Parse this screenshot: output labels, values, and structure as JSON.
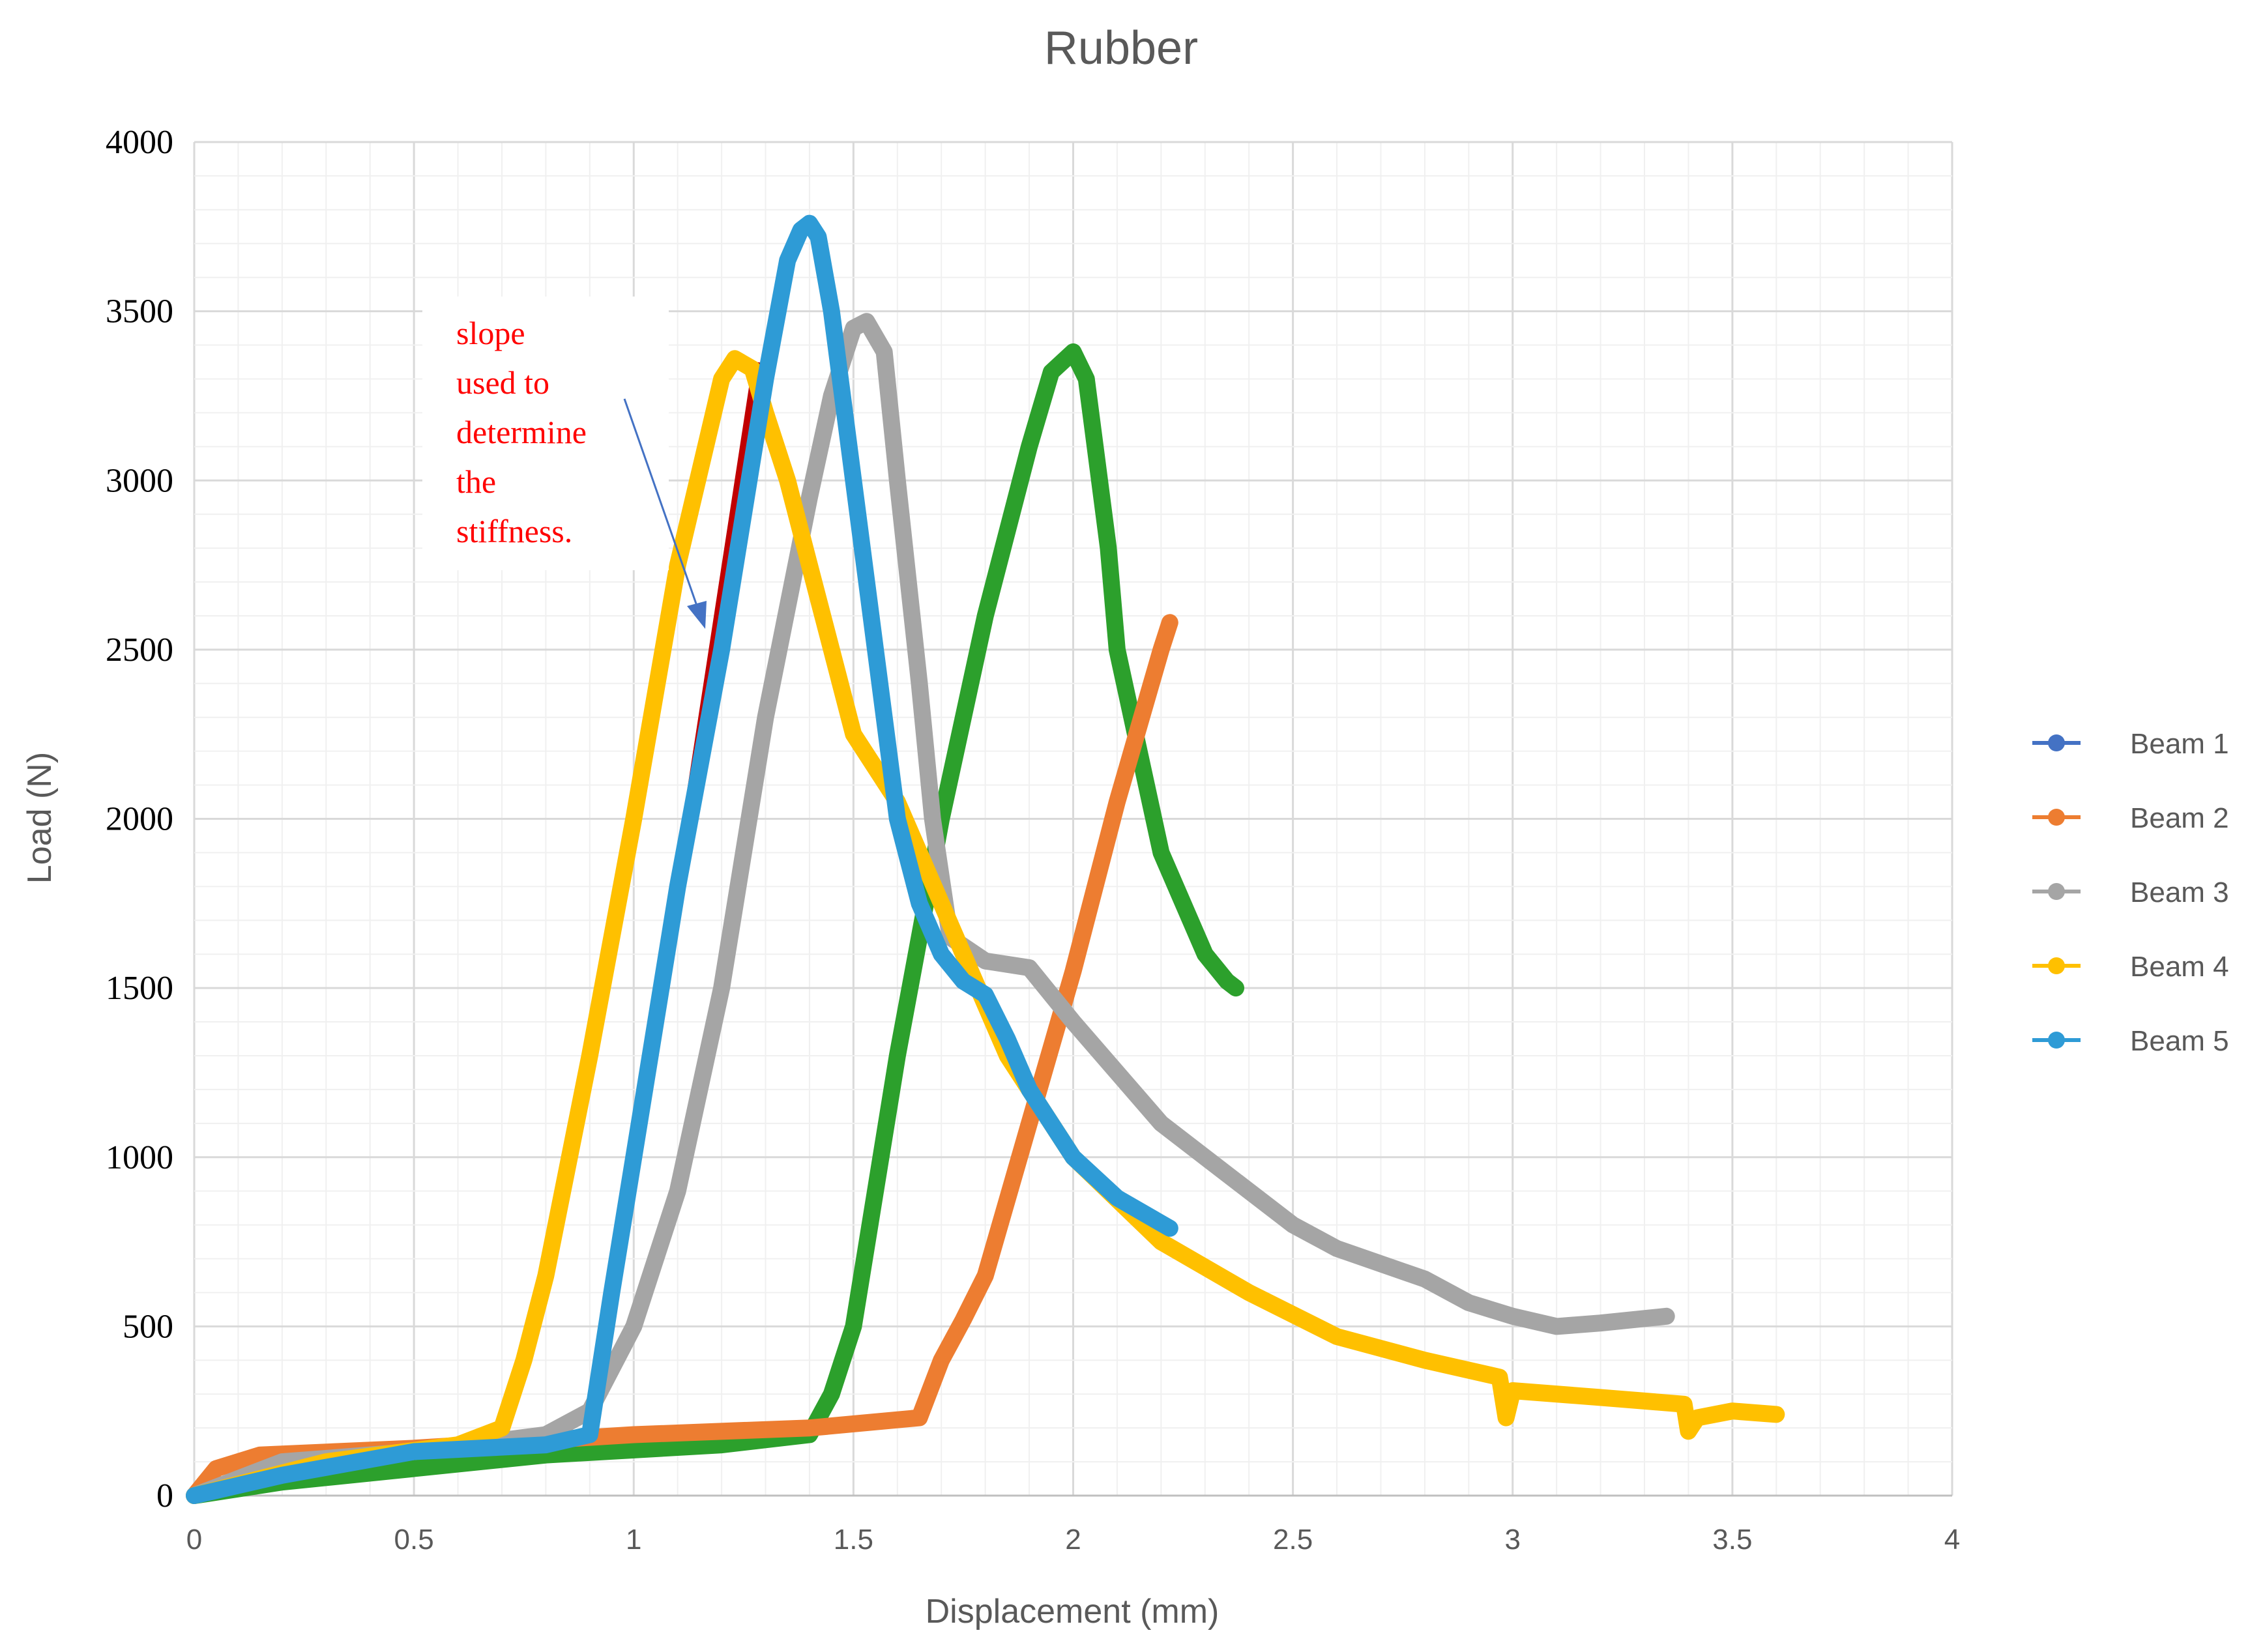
{
  "chart_data": {
    "type": "line",
    "title": "Rubber",
    "xlabel": "Displacement (mm)",
    "ylabel": "Load (N)",
    "xlim": [
      0,
      4
    ],
    "ylim": [
      0,
      4000
    ],
    "x_ticks": [
      "0",
      "0.5",
      "1",
      "1.5",
      "2",
      "2.5",
      "3",
      "3.5",
      "4"
    ],
    "y_ticks": [
      "0",
      "500",
      "1000",
      "1500",
      "2000",
      "2500",
      "3000",
      "3500",
      "4000"
    ],
    "grid": true,
    "legend_position": "right",
    "annotation": {
      "lines": [
        "slope",
        "used to",
        "determine",
        "the",
        "stiffness."
      ],
      "color": "#ff0000",
      "arrow_color": "#4472c4",
      "slope_line": {
        "x": [
          1.0,
          1.28
        ],
        "y": [
          980,
          3350
        ],
        "color": "#c00000"
      }
    },
    "series": [
      {
        "name": "Beam 1",
        "color": "#2ca02c",
        "legend_color": "#4472c4",
        "x": [
          0,
          0.2,
          0.5,
          0.8,
          1.2,
          1.4,
          1.45,
          1.5,
          1.55,
          1.6,
          1.7,
          1.8,
          1.9,
          1.95,
          2.0,
          2.03,
          2.05,
          2.08,
          2.1,
          2.15,
          2.2,
          2.25,
          2.3,
          2.35,
          2.37
        ],
        "y": [
          0,
          40,
          80,
          120,
          150,
          180,
          300,
          500,
          900,
          1300,
          2000,
          2600,
          3100,
          3320,
          3380,
          3300,
          3100,
          2800,
          2500,
          2200,
          1900,
          1750,
          1600,
          1520,
          1500
        ]
      },
      {
        "name": "Beam 2",
        "color": "#ed7d31",
        "legend_color": "#ed7d31",
        "x": [
          0,
          0.05,
          0.15,
          0.5,
          1.0,
          1.4,
          1.65,
          1.7,
          1.75,
          1.8,
          1.9,
          2.0,
          2.1,
          2.2,
          2.22
        ],
        "y": [
          0,
          80,
          120,
          140,
          180,
          200,
          230,
          400,
          520,
          650,
          1100,
          1550,
          2050,
          2500,
          2580
        ]
      },
      {
        "name": "Beam 3",
        "color": "#a5a5a5",
        "legend_color": "#a5a5a5",
        "x": [
          0,
          0.2,
          0.5,
          0.8,
          0.9,
          1.0,
          1.1,
          1.2,
          1.3,
          1.4,
          1.45,
          1.5,
          1.53,
          1.57,
          1.6,
          1.65,
          1.68,
          1.72,
          1.8,
          1.9,
          2.0,
          2.1,
          2.2,
          2.3,
          2.4,
          2.5,
          2.6,
          2.8,
          2.9,
          3.0,
          3.1,
          3.2,
          3.35
        ],
        "y": [
          0,
          100,
          130,
          180,
          250,
          500,
          900,
          1500,
          2300,
          2950,
          3250,
          3450,
          3470,
          3380,
          3000,
          2400,
          2000,
          1650,
          1580,
          1560,
          1400,
          1250,
          1100,
          1000,
          900,
          800,
          730,
          640,
          570,
          530,
          500,
          510,
          530
        ]
      },
      {
        "name": "Beam 4",
        "color": "#ffc000",
        "legend_color": "#ffc000",
        "x": [
          0,
          0.3,
          0.6,
          0.7,
          0.75,
          0.8,
          0.9,
          1.0,
          1.1,
          1.2,
          1.23,
          1.27,
          1.3,
          1.35,
          1.4,
          1.45,
          1.5,
          1.6,
          1.7,
          1.75,
          1.85,
          2.0,
          2.2,
          2.4,
          2.6,
          2.8,
          2.97,
          2.985,
          3.0,
          3.2,
          3.39,
          3.4,
          3.42,
          3.5,
          3.6
        ],
        "y": [
          0,
          100,
          150,
          200,
          400,
          650,
          1300,
          2000,
          2750,
          3300,
          3360,
          3330,
          3200,
          3000,
          2750,
          2500,
          2250,
          2050,
          1750,
          1600,
          1300,
          1000,
          750,
          600,
          470,
          400,
          350,
          230,
          310,
          290,
          270,
          190,
          230,
          250,
          240
        ]
      },
      {
        "name": "Beam 5",
        "color": "#2e9bd6",
        "legend_color": "#2e9bd6",
        "x": [
          0,
          0.2,
          0.5,
          0.8,
          0.9,
          0.95,
          1.0,
          1.05,
          1.1,
          1.2,
          1.3,
          1.35,
          1.38,
          1.4,
          1.42,
          1.45,
          1.5,
          1.55,
          1.6,
          1.65,
          1.7,
          1.75,
          1.8,
          1.85,
          1.9,
          2.0,
          2.1,
          2.22
        ],
        "y": [
          0,
          60,
          130,
          150,
          180,
          600,
          1000,
          1400,
          1800,
          2500,
          3300,
          3650,
          3740,
          3760,
          3720,
          3500,
          3000,
          2500,
          2000,
          1750,
          1600,
          1520,
          1480,
          1350,
          1200,
          1000,
          880,
          790
        ]
      }
    ]
  }
}
